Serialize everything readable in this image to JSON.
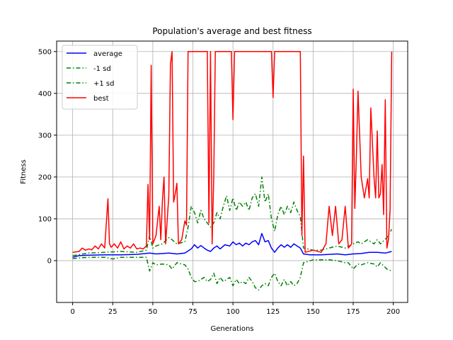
{
  "chart_data": {
    "type": "line",
    "title": "Population's average and best fitness",
    "xlabel": "Generations",
    "ylabel": "Fitness",
    "xlim": [
      -10,
      209
    ],
    "ylim": [
      -100,
      525
    ],
    "xticks": [
      0,
      25,
      50,
      75,
      100,
      125,
      150,
      175,
      200
    ],
    "yticks": [
      0,
      100,
      200,
      300,
      400,
      500
    ],
    "grid": true,
    "legend_position": "top-left",
    "series": [
      {
        "name": "average",
        "color": "#0000ff",
        "style": "solid",
        "points": [
          [
            0,
            8
          ],
          [
            4,
            12
          ],
          [
            10,
            13
          ],
          [
            20,
            14
          ],
          [
            30,
            14
          ],
          [
            40,
            15
          ],
          [
            48,
            18
          ],
          [
            52,
            16
          ],
          [
            56,
            17
          ],
          [
            60,
            18
          ],
          [
            65,
            16
          ],
          [
            70,
            18
          ],
          [
            74,
            28
          ],
          [
            76,
            38
          ],
          [
            78,
            30
          ],
          [
            80,
            36
          ],
          [
            82,
            30
          ],
          [
            84,
            25
          ],
          [
            86,
            22
          ],
          [
            88,
            30
          ],
          [
            90,
            35
          ],
          [
            92,
            28
          ],
          [
            95,
            38
          ],
          [
            98,
            35
          ],
          [
            100,
            45
          ],
          [
            102,
            38
          ],
          [
            104,
            42
          ],
          [
            106,
            35
          ],
          [
            108,
            42
          ],
          [
            110,
            38
          ],
          [
            112,
            45
          ],
          [
            114,
            48
          ],
          [
            116,
            38
          ],
          [
            118,
            65
          ],
          [
            120,
            45
          ],
          [
            122,
            48
          ],
          [
            124,
            30
          ],
          [
            126,
            20
          ],
          [
            128,
            30
          ],
          [
            130,
            38
          ],
          [
            132,
            32
          ],
          [
            134,
            38
          ],
          [
            136,
            32
          ],
          [
            138,
            40
          ],
          [
            140,
            35
          ],
          [
            142,
            30
          ],
          [
            144,
            16
          ],
          [
            148,
            14
          ],
          [
            155,
            14
          ],
          [
            160,
            15
          ],
          [
            165,
            16
          ],
          [
            170,
            14
          ],
          [
            175,
            16
          ],
          [
            180,
            17
          ],
          [
            185,
            20
          ],
          [
            190,
            20
          ],
          [
            195,
            18
          ],
          [
            199,
            22
          ]
        ]
      },
      {
        "name": "-1 sd",
        "color": "#008000",
        "style": "dashdot",
        "points": [
          [
            0,
            5
          ],
          [
            10,
            8
          ],
          [
            20,
            8
          ],
          [
            25,
            4
          ],
          [
            30,
            8
          ],
          [
            40,
            8
          ],
          [
            46,
            8
          ],
          [
            48,
            -25
          ],
          [
            50,
            -5
          ],
          [
            52,
            -10
          ],
          [
            56,
            -8
          ],
          [
            60,
            -10
          ],
          [
            62,
            -20
          ],
          [
            65,
            -5
          ],
          [
            70,
            -10
          ],
          [
            72,
            -20
          ],
          [
            74,
            -40
          ],
          [
            76,
            -50
          ],
          [
            78,
            -50
          ],
          [
            80,
            -45
          ],
          [
            82,
            -40
          ],
          [
            84,
            -50
          ],
          [
            86,
            -45
          ],
          [
            88,
            -30
          ],
          [
            90,
            -55
          ],
          [
            92,
            -40
          ],
          [
            94,
            -50
          ],
          [
            96,
            -45
          ],
          [
            98,
            -40
          ],
          [
            100,
            -60
          ],
          [
            102,
            -45
          ],
          [
            104,
            -55
          ],
          [
            106,
            -50
          ],
          [
            108,
            -55
          ],
          [
            110,
            -40
          ],
          [
            112,
            -50
          ],
          [
            114,
            -65
          ],
          [
            116,
            -70
          ],
          [
            118,
            -60
          ],
          [
            120,
            -55
          ],
          [
            122,
            -60
          ],
          [
            124,
            -40
          ],
          [
            126,
            -30
          ],
          [
            128,
            -50
          ],
          [
            130,
            -60
          ],
          [
            132,
            -45
          ],
          [
            134,
            -60
          ],
          [
            136,
            -50
          ],
          [
            138,
            -60
          ],
          [
            140,
            -55
          ],
          [
            142,
            -40
          ],
          [
            144,
            -5
          ],
          [
            150,
            2
          ],
          [
            155,
            2
          ],
          [
            160,
            2
          ],
          [
            165,
            0
          ],
          [
            170,
            -5
          ],
          [
            172,
            -5
          ],
          [
            175,
            -20
          ],
          [
            178,
            -8
          ],
          [
            180,
            -10
          ],
          [
            184,
            -5
          ],
          [
            188,
            -8
          ],
          [
            190,
            -15
          ],
          [
            192,
            -5
          ],
          [
            196,
            -20
          ],
          [
            199,
            -25
          ]
        ]
      },
      {
        "name": "+1 sd",
        "color": "#008000",
        "style": "dashdot",
        "points": [
          [
            0,
            12
          ],
          [
            10,
            18
          ],
          [
            20,
            20
          ],
          [
            30,
            22
          ],
          [
            40,
            20
          ],
          [
            46,
            25
          ],
          [
            48,
            60
          ],
          [
            50,
            30
          ],
          [
            52,
            35
          ],
          [
            56,
            40
          ],
          [
            60,
            55
          ],
          [
            62,
            50
          ],
          [
            65,
            40
          ],
          [
            70,
            45
          ],
          [
            72,
            80
          ],
          [
            74,
            130
          ],
          [
            76,
            115
          ],
          [
            78,
            90
          ],
          [
            80,
            120
          ],
          [
            82,
            100
          ],
          [
            84,
            90
          ],
          [
            86,
            80
          ],
          [
            88,
            90
          ],
          [
            90,
            115
          ],
          [
            92,
            100
          ],
          [
            94,
            130
          ],
          [
            96,
            155
          ],
          [
            98,
            120
          ],
          [
            100,
            150
          ],
          [
            102,
            120
          ],
          [
            104,
            140
          ],
          [
            106,
            130
          ],
          [
            108,
            140
          ],
          [
            110,
            120
          ],
          [
            112,
            150
          ],
          [
            114,
            160
          ],
          [
            116,
            130
          ],
          [
            118,
            200
          ],
          [
            120,
            140
          ],
          [
            122,
            160
          ],
          [
            124,
            100
          ],
          [
            126,
            70
          ],
          [
            128,
            110
          ],
          [
            130,
            130
          ],
          [
            132,
            110
          ],
          [
            134,
            130
          ],
          [
            136,
            115
          ],
          [
            138,
            140
          ],
          [
            140,
            120
          ],
          [
            142,
            105
          ],
          [
            144,
            30
          ],
          [
            150,
            25
          ],
          [
            155,
            25
          ],
          [
            160,
            30
          ],
          [
            165,
            35
          ],
          [
            170,
            30
          ],
          [
            175,
            40
          ],
          [
            178,
            45
          ],
          [
            180,
            40
          ],
          [
            184,
            50
          ],
          [
            188,
            40
          ],
          [
            190,
            50
          ],
          [
            192,
            40
          ],
          [
            196,
            55
          ],
          [
            199,
            75
          ]
        ]
      },
      {
        "name": "best",
        "color": "#ff0000",
        "style": "solid",
        "points": [
          [
            0,
            20
          ],
          [
            4,
            22
          ],
          [
            6,
            30
          ],
          [
            8,
            25
          ],
          [
            10,
            28
          ],
          [
            12,
            26
          ],
          [
            14,
            35
          ],
          [
            16,
            28
          ],
          [
            18,
            40
          ],
          [
            20,
            30
          ],
          [
            22,
            148
          ],
          [
            23,
            40
          ],
          [
            24,
            32
          ],
          [
            26,
            40
          ],
          [
            28,
            30
          ],
          [
            30,
            45
          ],
          [
            32,
            28
          ],
          [
            34,
            35
          ],
          [
            36,
            30
          ],
          [
            38,
            40
          ],
          [
            40,
            28
          ],
          [
            42,
            30
          ],
          [
            44,
            28
          ],
          [
            46,
            35
          ],
          [
            47,
            182
          ],
          [
            48,
            50
          ],
          [
            49,
            467
          ],
          [
            50,
            40
          ],
          [
            52,
            60
          ],
          [
            54,
            130
          ],
          [
            55,
            50
          ],
          [
            56,
            145
          ],
          [
            57,
            200
          ],
          [
            58,
            40
          ],
          [
            60,
            155
          ],
          [
            61,
            470
          ],
          [
            62,
            500
          ],
          [
            63,
            140
          ],
          [
            64,
            160
          ],
          [
            65,
            185
          ],
          [
            66,
            40
          ],
          [
            68,
            50
          ],
          [
            70,
            95
          ],
          [
            71,
            85
          ],
          [
            72,
            500
          ],
          [
            84,
            500
          ],
          [
            85,
            90
          ],
          [
            86,
            500
          ],
          [
            87,
            40
          ],
          [
            88,
            200
          ],
          [
            89,
            500
          ],
          [
            99,
            500
          ],
          [
            100,
            337
          ],
          [
            101,
            500
          ],
          [
            124,
            500
          ],
          [
            125,
            390
          ],
          [
            126,
            500
          ],
          [
            142,
            500
          ],
          [
            143,
            60
          ],
          [
            144,
            250
          ],
          [
            145,
            20
          ],
          [
            150,
            25
          ],
          [
            155,
            20
          ],
          [
            158,
            40
          ],
          [
            160,
            130
          ],
          [
            162,
            60
          ],
          [
            164,
            130
          ],
          [
            166,
            40
          ],
          [
            168,
            50
          ],
          [
            170,
            130
          ],
          [
            172,
            30
          ],
          [
            174,
            40
          ],
          [
            175,
            410
          ],
          [
            176,
            125
          ],
          [
            177,
            250
          ],
          [
            178,
            405
          ],
          [
            180,
            200
          ],
          [
            182,
            150
          ],
          [
            184,
            196
          ],
          [
            185,
            150
          ],
          [
            186,
            365
          ],
          [
            188,
            200
          ],
          [
            189,
            150
          ],
          [
            190,
            310
          ],
          [
            191,
            150
          ],
          [
            192,
            160
          ],
          [
            193,
            230
          ],
          [
            194,
            110
          ],
          [
            195,
            385
          ],
          [
            196,
            30
          ],
          [
            197,
            50
          ],
          [
            198,
            120
          ],
          [
            199,
            500
          ]
        ]
      }
    ]
  }
}
